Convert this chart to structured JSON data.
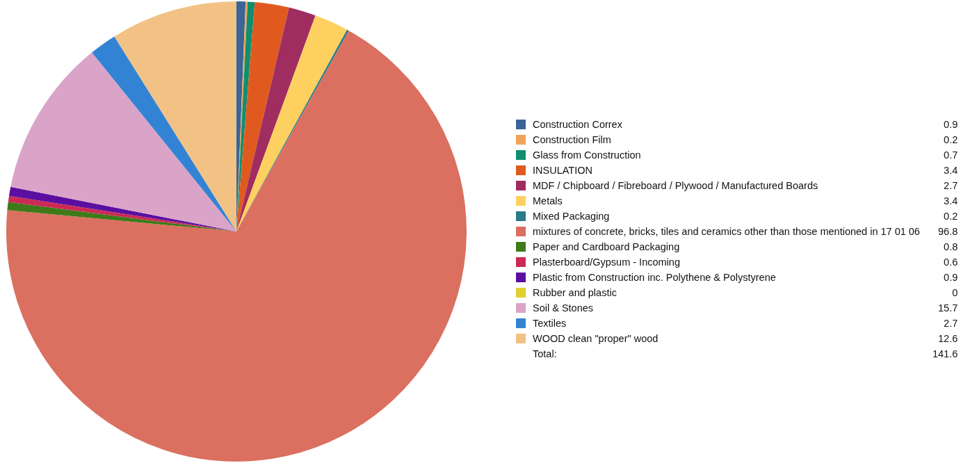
{
  "chart_data": {
    "type": "pie",
    "categories": [
      "Construction Correx",
      "Construction Film",
      "Glass from Construction",
      "INSULATION",
      "MDF / Chipboard / Fibreboard / Plywood / Manufactured Boards",
      "Metals",
      "Mixed Packaging",
      "mixtures of concrete, bricks, tiles and ceramics other than those mentioned in 17 01 06",
      "Paper and Cardboard Packaging",
      "Plasterboard/Gypsum - Incoming",
      "Plastic from Construction inc. Polythene & Polystyrene",
      "Rubber and plastic",
      "Soil & Stones",
      "Textiles",
      "WOOD clean \"proper\" wood"
    ],
    "values": [
      0.9,
      0.2,
      0.7,
      3.4,
      2.7,
      3.4,
      0.2,
      96.8,
      0.8,
      0.6,
      0.9,
      0,
      15.7,
      2.7,
      12.6
    ],
    "colors": [
      "#3a6596",
      "#f0a35a",
      "#0f8f6f",
      "#e05a20",
      "#a02d60",
      "#fdd060",
      "#2a7a8a",
      "#db7060",
      "#3f7a1a",
      "#cc2a55",
      "#5a0fa0",
      "#e0d030",
      "#d9a4c8",
      "#3383d4",
      "#f2c285"
    ],
    "value_labels": [
      "0.9",
      "0.2",
      "0.7",
      "3.4",
      "2.7",
      "3.4",
      "0.2",
      "96.8",
      "0.8",
      "0.6",
      "0.9",
      "0",
      "15.7",
      "2.7",
      "12.6"
    ],
    "legend": "right",
    "annotations": [
      "Total:",
      "141.6"
    ]
  }
}
